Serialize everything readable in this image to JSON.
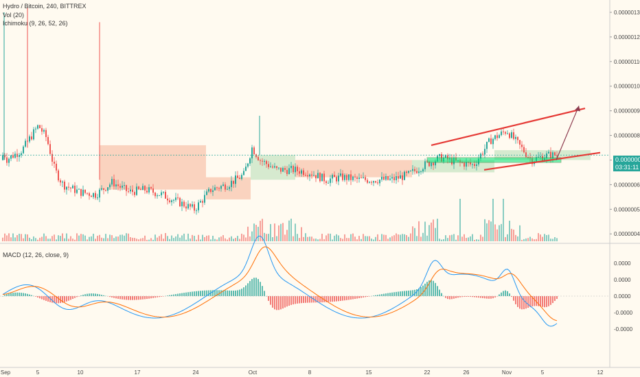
{
  "header": {
    "symbol_line": "Hydro / Bitcoin, 240, BITTREX",
    "vol_line": "Vol (20)",
    "ichimoku_line": "Ichimoku (9, 26, 52, 26)",
    "macd_line": "MACD (12, 26, close, 9)"
  },
  "price_badge": {
    "value": "0.00000072",
    "countdown": "03:31:11"
  },
  "colors": {
    "background": "#fffaf0",
    "up": "#26a69a",
    "down": "#ef5350",
    "macd": "#2196f3",
    "signal": "#ff6d00",
    "trendline": "#e53935",
    "support_zone": "#00e676",
    "tenkan": "#7cb342",
    "kijun": "#c62828",
    "cloud_bull": "#a5d6a7",
    "cloud_bear": "#f4a582"
  },
  "chart_data": [
    {
      "type": "candlestick",
      "panel": "price",
      "yticks": [
        "0.00000130",
        "0.00000120",
        "0.00000110",
        "0.00000100",
        "0.00000090",
        "0.00000080",
        "0.00000070",
        "0.00000060",
        "0.00000050",
        "0.00000040"
      ],
      "ylim": [
        3.7e-07,
        1.35e-06
      ],
      "xticks": [
        "Sep",
        "5",
        "10",
        "17",
        "24",
        "Oct",
        "8",
        "15",
        "22",
        "26",
        "Nov",
        "5",
        "12"
      ],
      "series_close": [
        {
          "d": "Sep 1",
          "v": 7e-07
        },
        {
          "d": "Sep 3",
          "v": 7.4e-07
        },
        {
          "d": "Sep 5",
          "v": 8.4e-07
        },
        {
          "d": "Sep 6",
          "v": 7.9e-07
        },
        {
          "d": "Sep 7",
          "v": 6.6e-07
        },
        {
          "d": "Sep 8",
          "v": 6e-07
        },
        {
          "d": "Sep 10",
          "v": 5.7e-07
        },
        {
          "d": "Sep 12",
          "v": 5.6e-07
        },
        {
          "d": "Sep 14",
          "v": 6.1e-07
        },
        {
          "d": "Sep 16",
          "v": 5.7e-07
        },
        {
          "d": "Sep 18",
          "v": 5.8e-07
        },
        {
          "d": "Sep 20",
          "v": 5.6e-07
        },
        {
          "d": "Sep 22",
          "v": 5.3e-07
        },
        {
          "d": "Sep 24",
          "v": 5e-07
        },
        {
          "d": "Sep 26",
          "v": 5.8e-07
        },
        {
          "d": "Sep 28",
          "v": 6e-07
        },
        {
          "d": "Sep 30",
          "v": 6.4e-07
        },
        {
          "d": "Oct 1",
          "v": 7.5e-07
        },
        {
          "d": "Oct 2",
          "v": 7e-07
        },
        {
          "d": "Oct 4",
          "v": 6.6e-07
        },
        {
          "d": "Oct 6",
          "v": 6.6e-07
        },
        {
          "d": "Oct 8",
          "v": 6.5e-07
        },
        {
          "d": "Oct 10",
          "v": 6.2e-07
        },
        {
          "d": "Oct 12",
          "v": 6.3e-07
        },
        {
          "d": "Oct 14",
          "v": 6.2e-07
        },
        {
          "d": "Oct 16",
          "v": 6.2e-07
        },
        {
          "d": "Oct 18",
          "v": 6.2e-07
        },
        {
          "d": "Oct 20",
          "v": 6.4e-07
        },
        {
          "d": "Oct 22",
          "v": 6.8e-07
        },
        {
          "d": "Oct 24",
          "v": 7.1e-07
        },
        {
          "d": "Oct 26",
          "v": 6.9e-07
        },
        {
          "d": "Oct 28",
          "v": 6.8e-07
        },
        {
          "d": "Oct 30",
          "v": 7.8e-07
        },
        {
          "d": "Nov 1",
          "v": 8.2e-07
        },
        {
          "d": "Nov 2",
          "v": 7.8e-07
        },
        {
          "d": "Nov 4",
          "v": 7e-07
        },
        {
          "d": "Nov 6",
          "v": 7.2e-07
        }
      ],
      "annotations": {
        "support_zone": [
          6.9e-07,
          7.1e-07
        ],
        "projection_target": 9.4e-07
      }
    },
    {
      "type": "histogram",
      "panel": "macd",
      "yticks": [
        "0.0000",
        "0.0000",
        "0.0000",
        "-0.0000",
        "-0.0000"
      ],
      "ylim": [
        -1.2e-07,
        9e-08
      ]
    }
  ]
}
